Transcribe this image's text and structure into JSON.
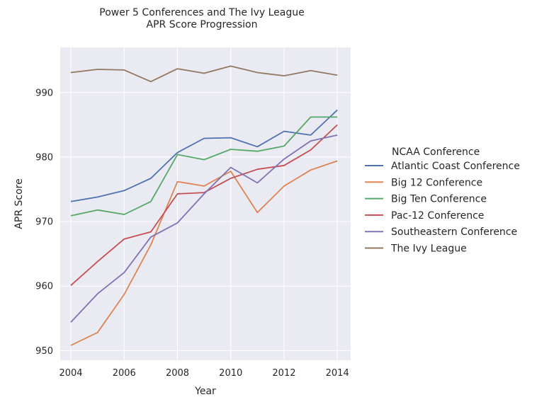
{
  "chart_data": {
    "type": "line",
    "title": [
      "Power 5 Conferences and The Ivy League",
      "APR Score Progression"
    ],
    "xlabel": "Year",
    "ylabel": "APR Score",
    "xlim": [
      2003.6,
      2014.5
    ],
    "ylim": [
      948.5,
      997
    ],
    "xticks": [
      2004,
      2006,
      2008,
      2010,
      2012,
      2014
    ],
    "yticks": [
      950,
      960,
      970,
      980,
      990
    ],
    "grid": true,
    "legend_title": "NCAA Conference",
    "legend_position": "right",
    "x": [
      2004,
      2005,
      2006,
      2007,
      2008,
      2009,
      2010,
      2011,
      2012,
      2013,
      2014
    ],
    "series": [
      {
        "name": "Atlantic Coast Conference",
        "color": "#4c72b0",
        "values": [
          973.1,
          973.8,
          974.8,
          976.7,
          980.7,
          982.9,
          983.0,
          981.6,
          984.0,
          983.4,
          987.3
        ]
      },
      {
        "name": "Big 12 Conference",
        "color": "#dd8452",
        "values": [
          950.8,
          952.8,
          958.7,
          966.4,
          976.2,
          975.5,
          977.8,
          971.4,
          975.5,
          978.0,
          979.4
        ]
      },
      {
        "name": "Big Ten Conference",
        "color": "#55a868",
        "values": [
          970.9,
          971.8,
          971.1,
          973.1,
          980.4,
          979.6,
          981.2,
          980.9,
          981.7,
          986.2,
          986.2
        ]
      },
      {
        "name": "Pac-12 Conference",
        "color": "#c44e52",
        "values": [
          960.1,
          963.8,
          967.3,
          968.4,
          974.3,
          974.5,
          976.7,
          978.1,
          978.7,
          981.1,
          985.0
        ]
      },
      {
        "name": "Southeastern Conference",
        "color": "#8172b3",
        "values": [
          954.4,
          958.8,
          962.1,
          967.6,
          969.8,
          974.3,
          978.4,
          976.0,
          979.7,
          982.5,
          983.4
        ]
      },
      {
        "name": "The Ivy League",
        "color": "#937860",
        "values": [
          993.1,
          993.6,
          993.5,
          991.7,
          993.7,
          993.0,
          994.1,
          993.1,
          992.6,
          993.4,
          992.7
        ]
      }
    ]
  }
}
